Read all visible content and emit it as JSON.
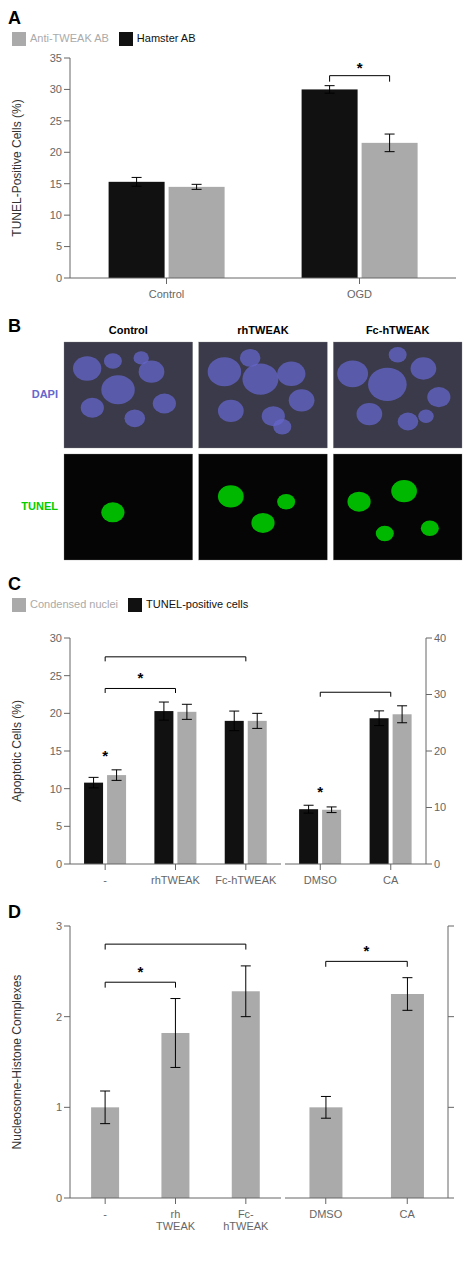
{
  "chart_data": [
    {
      "type": "bar",
      "title": "A",
      "categories": [
        "Control",
        "OGD"
      ],
      "series": [
        {
          "name": "Hamster AB",
          "color": "#111111",
          "values": [
            15.3,
            30.0
          ],
          "errors": [
            0.7,
            0.6
          ]
        },
        {
          "name": "Anti-TWEAK AB",
          "color": "#aaaaaa",
          "values": [
            14.5,
            21.5
          ],
          "errors": [
            0.4,
            1.4
          ]
        }
      ],
      "ylabel": "TUNEL-Positive Cells (%)",
      "ylim": [
        0,
        35
      ],
      "yticks": [
        0,
        5,
        10,
        15,
        20,
        25,
        30,
        35
      ],
      "legend": "upper left",
      "annotations": [
        "*"
      ]
    },
    {
      "type": "image",
      "title": "B",
      "categories": [
        "Control",
        "rhTWEAK",
        "Fc-hTWEAK"
      ],
      "series": [
        {
          "name": "DAPI",
          "color": "#6666cc"
        },
        {
          "name": "TUNEL",
          "color": "#00cc00"
        }
      ],
      "colors": [
        "#3a3a4a",
        "#050505"
      ]
    },
    {
      "type": "bar",
      "title": "C",
      "categories": [
        "-",
        "rhTWEAK",
        "Fc-hTWEAK"
      ],
      "series": [
        {
          "name": "TUNEL-positive cells",
          "color": "#111111",
          "values": [
            10.8,
            20.3,
            19.0
          ],
          "errors": [
            0.7,
            1.2,
            1.3
          ]
        },
        {
          "name": "Condensed nuclei",
          "color": "#aaaaaa",
          "values": [
            11.8,
            20.2,
            19.0
          ],
          "errors": [
            0.7,
            1.0,
            1.0
          ]
        }
      ],
      "ylabel": "Apoptotic Cells (%)",
      "ylim": [
        0,
        30
      ],
      "yticks": [
        0,
        5,
        10,
        15,
        20,
        25,
        30
      ],
      "legend": "upper left",
      "annotations": [
        "*",
        "*"
      ]
    },
    {
      "type": "bar",
      "categories": [
        "DMSO",
        "CA"
      ],
      "series": [
        {
          "color": "#111111",
          "values": [
            9.7,
            25.8
          ],
          "errors": [
            0.7,
            1.3
          ]
        },
        {
          "color": "#aaaaaa",
          "values": [
            9.6,
            26.5
          ],
          "errors": [
            0.5,
            1.5
          ]
        }
      ],
      "ylim": [
        0,
        40
      ],
      "yticks": [
        0,
        10,
        20,
        30,
        40
      ],
      "annotations": [
        "*"
      ]
    },
    {
      "type": "bar",
      "title": "D",
      "categories": [
        "-",
        "rh\nTWEAK",
        "Fc-\nhTWEAK"
      ],
      "values": [
        1.0,
        1.82,
        2.28
      ],
      "errors": [
        0.18,
        0.38,
        0.28
      ],
      "color": "#aaaaaa",
      "ylabel": "Nucleosome-Histone Complexes",
      "ylim": [
        0,
        3
      ],
      "yticks": [
        0,
        1,
        2,
        3
      ],
      "annotations": [
        "*"
      ]
    },
    {
      "type": "bar",
      "categories": [
        "DMSO",
        "CA"
      ],
      "values": [
        1.0,
        2.25
      ],
      "errors": [
        0.12,
        0.18
      ],
      "color": "#aaaaaa",
      "ylim": [
        0,
        3
      ],
      "yticks": [
        0,
        1,
        2,
        3
      ],
      "tick_labels": "x",
      "annotations": [
        "*"
      ]
    }
  ]
}
